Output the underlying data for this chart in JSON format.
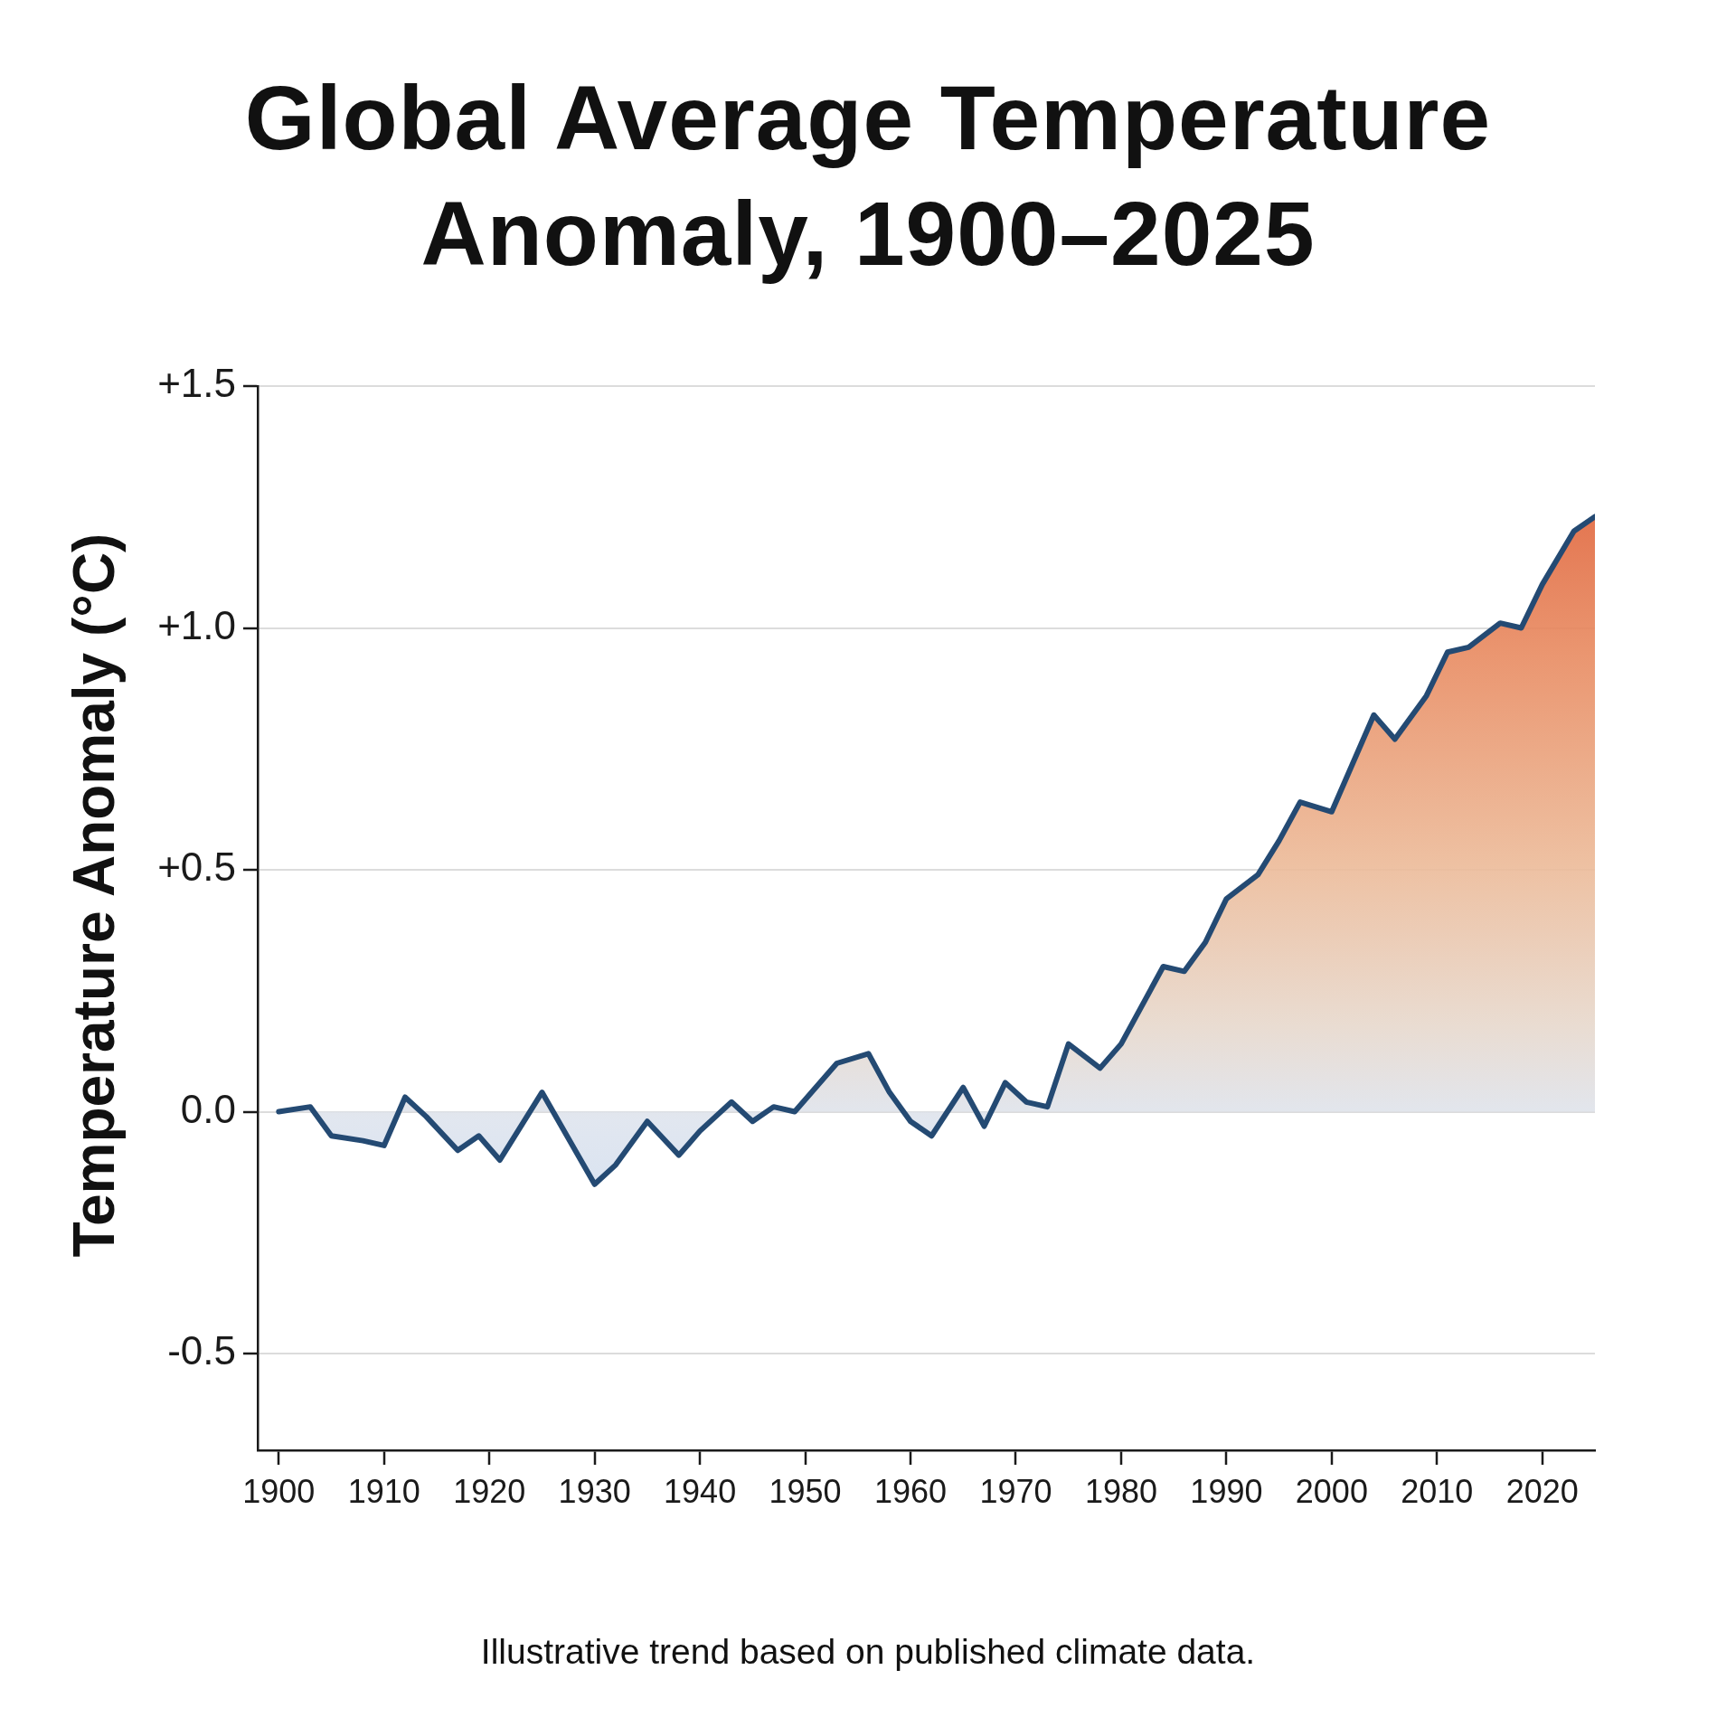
{
  "chart_data": {
    "type": "area",
    "title": "Global Average Temperature Anomaly, 1900–2025",
    "ylabel": "Temperature Anomaly (°C)",
    "annotations": [
      "Illustrative trend based on published climate data."
    ],
    "x": [
      1900,
      1903,
      1905,
      1908,
      1910,
      1912,
      1914,
      1917,
      1919,
      1921,
      1925,
      1930,
      1932,
      1935,
      1938,
      1940,
      1943,
      1945,
      1947,
      1949,
      1951,
      1953,
      1956,
      1958,
      1960,
      1962,
      1965,
      1967,
      1969,
      1971,
      1973,
      1975,
      1978,
      1980,
      1984,
      1986,
      1988,
      1990,
      1993,
      1995,
      1997,
      2000,
      2002,
      2004,
      2006,
      2009,
      2011,
      2013,
      2016,
      2018,
      2020,
      2023,
      2025
    ],
    "series": [
      {
        "color": "#244a73",
        "values": [
          0,
          0.01,
          -0.05,
          -0.06,
          -0.07,
          0.03,
          -0.01,
          -0.08,
          -0.05,
          -0.1,
          0.04,
          -0.15,
          -0.11,
          -0.02,
          -0.09,
          -0.04,
          0.02,
          -0.02,
          0.01,
          0,
          0.05,
          0.1,
          0.12,
          0.04,
          -0.02,
          -0.05,
          0.05,
          -0.03,
          0.06,
          0.02,
          0.01,
          0.14,
          0.09,
          0.14,
          0.3,
          0.29,
          0.35,
          0.44,
          0.49,
          0.56,
          0.64,
          0.62,
          0.72,
          0.82,
          0.77,
          0.86,
          0.95,
          0.96,
          1.01,
          1,
          1.09,
          1.2,
          1.23
        ]
      }
    ],
    "xlim": [
      1898,
      2025
    ],
    "ylim": [
      -0.7,
      1.5
    ],
    "xticks": [
      1900,
      1910,
      1920,
      1930,
      1940,
      1950,
      1960,
      1970,
      1980,
      1990,
      2000,
      2010,
      2020
    ],
    "yticks": [
      {
        "value": -0.5,
        "label": "-0.5"
      },
      {
        "value": 0,
        "label": "0.0"
      },
      {
        "value": 0.5,
        "label": "+0.5"
      },
      {
        "value": 1,
        "label": "+1.0"
      },
      {
        "value": 1.5,
        "label": "+1.5"
      }
    ],
    "grid": "y",
    "marker": "none",
    "line_style": "solid"
  }
}
